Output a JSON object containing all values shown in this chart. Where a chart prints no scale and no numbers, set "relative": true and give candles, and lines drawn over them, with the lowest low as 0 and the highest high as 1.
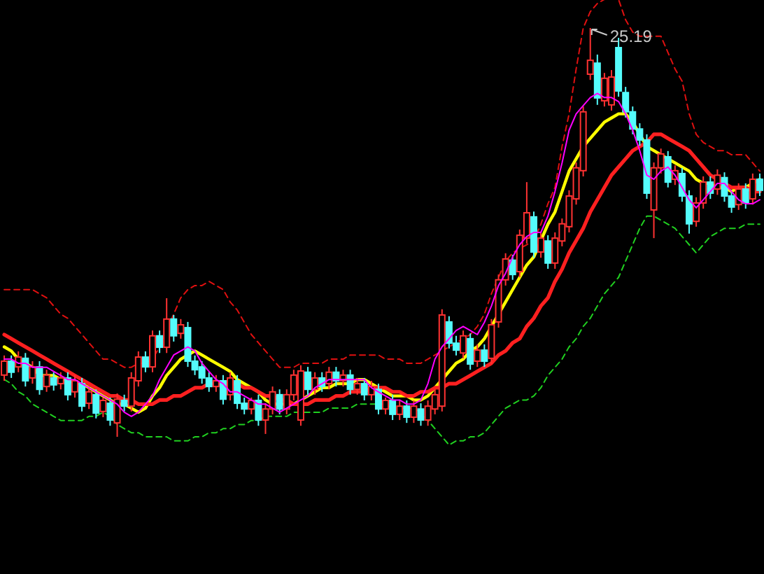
{
  "chart_data": {
    "type": "candlestick",
    "relative": true,
    "categories": [
      null,
      null,
      null,
      null,
      null,
      null,
      null,
      null,
      null,
      null,
      null,
      null,
      null,
      null,
      null,
      null,
      null,
      null,
      null,
      null,
      null,
      null,
      null,
      null,
      null,
      null,
      null,
      null,
      null,
      null,
      null,
      null,
      null,
      null,
      null,
      null,
      null,
      null,
      null,
      null,
      null,
      null,
      null,
      null,
      null,
      null,
      null,
      null,
      null,
      null,
      null,
      null,
      null,
      null,
      null,
      null,
      null,
      null,
      null,
      null,
      null,
      null,
      null,
      null,
      null,
      null,
      null,
      null,
      null,
      null,
      null,
      null,
      null,
      null,
      null,
      null,
      null,
      null,
      null,
      null,
      null,
      null,
      null,
      null,
      null,
      null,
      null,
      null,
      null,
      null,
      null,
      null,
      null,
      null,
      null,
      null,
      null,
      null,
      null,
      null,
      null,
      null,
      null,
      null,
      null,
      null,
      null,
      null
    ],
    "ohlc": [
      [
        0.151,
        0.199,
        0.137,
        0.185
      ],
      [
        0.185,
        0.199,
        0.144,
        0.158
      ],
      [
        0.171,
        0.209,
        0.158,
        0.195
      ],
      [
        0.192,
        0.205,
        0.123,
        0.137
      ],
      [
        0.144,
        0.185,
        0.13,
        0.171
      ],
      [
        0.171,
        0.185,
        0.103,
        0.116
      ],
      [
        0.123,
        0.164,
        0.11,
        0.151
      ],
      [
        0.144,
        0.158,
        0.113,
        0.127
      ],
      [
        0.13,
        0.158,
        0.116,
        0.144
      ],
      [
        0.144,
        0.158,
        0.089,
        0.103
      ],
      [
        0.11,
        0.151,
        0.096,
        0.137
      ],
      [
        0.13,
        0.144,
        0.062,
        0.075
      ],
      [
        0.082,
        0.123,
        0.068,
        0.11
      ],
      [
        0.103,
        0.116,
        0.045,
        0.058
      ],
      [
        0.062,
        0.096,
        0.048,
        0.089
      ],
      [
        0.082,
        0.096,
        0.027,
        0.041
      ],
      [
        0.034,
        0.106,
        0,
        0.092
      ],
      [
        0.089,
        0.103,
        0.062,
        0.075
      ],
      [
        0.075,
        0.158,
        0.062,
        0.144
      ],
      [
        0.137,
        0.209,
        0.123,
        0.195
      ],
      [
        0.195,
        0.209,
        0.158,
        0.171
      ],
      [
        0.171,
        0.26,
        0.158,
        0.247
      ],
      [
        0.247,
        0.26,
        0.205,
        0.219
      ],
      [
        0.219,
        0.339,
        0.205,
        0.288
      ],
      [
        0.288,
        0.298,
        0.233,
        0.247
      ],
      [
        0.253,
        0.288,
        0.24,
        0.274
      ],
      [
        0.267,
        0.281,
        0.171,
        0.185
      ],
      [
        0.185,
        0.199,
        0.151,
        0.164
      ],
      [
        0.171,
        0.185,
        0.13,
        0.144
      ],
      [
        0.144,
        0.158,
        0.11,
        0.123
      ],
      [
        0.123,
        0.151,
        0.11,
        0.137
      ],
      [
        0.137,
        0.151,
        0.079,
        0.092
      ],
      [
        0.103,
        0.158,
        0.089,
        0.144
      ],
      [
        0.137,
        0.151,
        0.068,
        0.082
      ],
      [
        0.082,
        0.096,
        0.055,
        0.068
      ],
      [
        0.068,
        0.096,
        0.055,
        0.089
      ],
      [
        0.089,
        0.103,
        0.027,
        0.041
      ],
      [
        0.041,
        0.082,
        0.007,
        0.068
      ],
      [
        0.068,
        0.123,
        0.055,
        0.11
      ],
      [
        0.103,
        0.116,
        0.055,
        0.068
      ],
      [
        0.068,
        0.116,
        0.055,
        0.103
      ],
      [
        0.103,
        0.164,
        0.089,
        0.151
      ],
      [
        0.041,
        0.175,
        0.027,
        0.161
      ],
      [
        0.158,
        0.171,
        0.103,
        0.116
      ],
      [
        0.116,
        0.158,
        0.103,
        0.144
      ],
      [
        0.144,
        0.158,
        0.11,
        0.123
      ],
      [
        0.13,
        0.171,
        0.116,
        0.158
      ],
      [
        0.158,
        0.171,
        0.123,
        0.137
      ],
      [
        0.137,
        0.164,
        0.123,
        0.151
      ],
      [
        0.151,
        0.164,
        0.103,
        0.116
      ],
      [
        0.116,
        0.144,
        0.103,
        0.13
      ],
      [
        0.13,
        0.144,
        0.089,
        0.103
      ],
      [
        0.103,
        0.137,
        0.089,
        0.123
      ],
      [
        0.116,
        0.13,
        0.055,
        0.068
      ],
      [
        0.068,
        0.096,
        0.055,
        0.089
      ],
      [
        0.089,
        0.103,
        0.041,
        0.055
      ],
      [
        0.055,
        0.089,
        0.041,
        0.075
      ],
      [
        0.075,
        0.089,
        0.034,
        0.048
      ],
      [
        0.048,
        0.089,
        0.034,
        0.075
      ],
      [
        0.068,
        0.082,
        0.027,
        0.041
      ],
      [
        0.041,
        0.089,
        0.027,
        0.075
      ],
      [
        0.068,
        0.116,
        0.055,
        0.103
      ],
      [
        0.075,
        0.312,
        0.062,
        0.298
      ],
      [
        0.281,
        0.295,
        0.216,
        0.229
      ],
      [
        0.229,
        0.247,
        0.199,
        0.212
      ],
      [
        0.205,
        0.26,
        0.192,
        0.247
      ],
      [
        0.24,
        0.253,
        0.164,
        0.178
      ],
      [
        0.185,
        0.226,
        0.171,
        0.212
      ],
      [
        0.212,
        0.226,
        0.171,
        0.185
      ],
      [
        0.192,
        0.288,
        0.178,
        0.274
      ],
      [
        0.281,
        0.397,
        0.267,
        0.384
      ],
      [
        0.384,
        0.449,
        0.37,
        0.435
      ],
      [
        0.432,
        0.445,
        0.384,
        0.397
      ],
      [
        0.404,
        0.507,
        0.39,
        0.493
      ],
      [
        0.486,
        0.623,
        0.473,
        0.548
      ],
      [
        0.538,
        0.551,
        0.438,
        0.452
      ],
      [
        0.452,
        0.5,
        0.438,
        0.486
      ],
      [
        0.479,
        0.493,
        0.411,
        0.425
      ],
      [
        0.425,
        0.5,
        0.411,
        0.486
      ],
      [
        0.479,
        0.534,
        0.466,
        0.521
      ],
      [
        0.514,
        0.603,
        0.5,
        0.589
      ],
      [
        0.582,
        0.671,
        0.568,
        0.658
      ],
      [
        0.651,
        0.808,
        0.637,
        0.795
      ],
      [
        0.887,
        1,
        0.873,
        0.921
      ],
      [
        0.914,
        0.935,
        0.812,
        0.829
      ],
      [
        0.822,
        0.89,
        0.808,
        0.877
      ],
      [
        0.812,
        0.897,
        0.798,
        0.88
      ],
      [
        0.952,
        0.976,
        0.832,
        0.846
      ],
      [
        0.842,
        0.856,
        0.781,
        0.795
      ],
      [
        0.795,
        0.808,
        0.74,
        0.753
      ],
      [
        0.753,
        0.767,
        0.712,
        0.726
      ],
      [
        0.726,
        0.74,
        0.582,
        0.596
      ],
      [
        0.555,
        0.671,
        0.486,
        0.658
      ],
      [
        0.658,
        0.705,
        0.644,
        0.692
      ],
      [
        0.685,
        0.699,
        0.61,
        0.623
      ],
      [
        0.63,
        0.664,
        0.616,
        0.651
      ],
      [
        0.644,
        0.658,
        0.575,
        0.589
      ],
      [
        0.589,
        0.603,
        0.497,
        0.521
      ],
      [
        0.527,
        0.586,
        0.514,
        0.572
      ],
      [
        0.572,
        0.637,
        0.558,
        0.623
      ],
      [
        0.623,
        0.637,
        0.582,
        0.596
      ],
      [
        0.606,
        0.654,
        0.592,
        0.64
      ],
      [
        0.634,
        0.647,
        0.575,
        0.589
      ],
      [
        0.589,
        0.603,
        0.548,
        0.562
      ],
      [
        0.568,
        0.62,
        0.555,
        0.606
      ],
      [
        0.606,
        0.62,
        0.558,
        0.572
      ],
      [
        0.582,
        0.644,
        0.568,
        0.63
      ],
      [
        0.63,
        0.644,
        0.589,
        0.603
      ]
    ],
    "series": [
      {
        "type": "line",
        "color": "#ffff00",
        "line_style": "solid",
        "values": [
          0.22,
          0.21,
          0.19,
          0.18,
          0.17,
          0.15,
          0.15,
          0.15,
          0.14,
          0.14,
          0.13,
          0.13,
          0.12,
          0.11,
          0.1,
          0.09,
          0.08,
          0.08,
          0.07,
          0.06,
          0.07,
          0.1,
          0.12,
          0.15,
          0.17,
          0.19,
          0.2,
          0.21,
          0.2,
          0.19,
          0.18,
          0.17,
          0.16,
          0.14,
          0.13,
          0.12,
          0.11,
          0.09,
          0.08,
          0.08,
          0.08,
          0.08,
          0.09,
          0.1,
          0.11,
          0.12,
          0.12,
          0.13,
          0.13,
          0.13,
          0.14,
          0.14,
          0.13,
          0.12,
          0.11,
          0.1,
          0.1,
          0.1,
          0.09,
          0.09,
          0.1,
          0.12,
          0.14,
          0.16,
          0.18,
          0.19,
          0.21,
          0.22,
          0.24,
          0.27,
          0.3,
          0.33,
          0.36,
          0.39,
          0.42,
          0.44,
          0.48,
          0.52,
          0.55,
          0.6,
          0.65,
          0.68,
          0.71,
          0.73,
          0.75,
          0.77,
          0.78,
          0.79,
          0.79,
          0.77,
          0.74,
          0.71,
          0.7,
          0.69,
          0.68,
          0.67,
          0.66,
          0.65,
          0.63,
          0.62,
          0.62,
          0.61,
          0.61,
          0.6,
          0.61,
          0.61,
          0.62,
          0.63
        ]
      },
      {
        "type": "line",
        "color": "#ff2020",
        "line_style": "solid",
        "values": [
          0.25,
          0.24,
          0.23,
          0.22,
          0.21,
          0.2,
          0.19,
          0.18,
          0.17,
          0.16,
          0.15,
          0.14,
          0.13,
          0.12,
          0.11,
          0.1,
          0.1,
          0.09,
          0.09,
          0.08,
          0.08,
          0.08,
          0.09,
          0.09,
          0.1,
          0.1,
          0.11,
          0.12,
          0.12,
          0.13,
          0.13,
          0.13,
          0.13,
          0.13,
          0.12,
          0.12,
          0.11,
          0.1,
          0.1,
          0.09,
          0.09,
          0.08,
          0.08,
          0.08,
          0.09,
          0.09,
          0.09,
          0.1,
          0.1,
          0.11,
          0.11,
          0.11,
          0.12,
          0.12,
          0.12,
          0.11,
          0.11,
          0.1,
          0.1,
          0.11,
          0.11,
          0.12,
          0.12,
          0.13,
          0.13,
          0.14,
          0.15,
          0.16,
          0.17,
          0.18,
          0.2,
          0.21,
          0.23,
          0.24,
          0.27,
          0.29,
          0.32,
          0.34,
          0.38,
          0.41,
          0.45,
          0.48,
          0.51,
          0.55,
          0.58,
          0.61,
          0.64,
          0.66,
          0.68,
          0.7,
          0.71,
          0.72,
          0.74,
          0.74,
          0.73,
          0.72,
          0.71,
          0.7,
          0.68,
          0.66,
          0.64,
          0.63,
          0.62,
          0.61,
          0.61,
          0.61,
          0.6,
          0.6
        ]
      },
      {
        "type": "line",
        "color": "#ff00ff",
        "line_style": "solid",
        "values": [
          0.19,
          0.19,
          0.18,
          0.18,
          0.17,
          0.17,
          0.17,
          0.16,
          0.15,
          0.14,
          0.14,
          0.13,
          0.12,
          0.11,
          0.1,
          0.09,
          0.08,
          0.06,
          0.05,
          0.06,
          0.08,
          0.1,
          0.14,
          0.17,
          0.2,
          0.21,
          0.22,
          0.21,
          0.18,
          0.16,
          0.14,
          0.13,
          0.11,
          0.11,
          0.1,
          0.09,
          0.08,
          0.08,
          0.07,
          0.06,
          0.07,
          0.08,
          0.09,
          0.1,
          0.12,
          0.13,
          0.14,
          0.14,
          0.14,
          0.14,
          0.14,
          0.14,
          0.12,
          0.11,
          0.1,
          0.09,
          0.09,
          0.08,
          0.08,
          0.09,
          0.13,
          0.19,
          0.22,
          0.24,
          0.26,
          0.27,
          0.26,
          0.25,
          0.28,
          0.32,
          0.37,
          0.4,
          0.44,
          0.47,
          0.49,
          0.5,
          0.5,
          0.54,
          0.6,
          0.67,
          0.75,
          0.79,
          0.81,
          0.83,
          0.84,
          0.83,
          0.83,
          0.82,
          0.79,
          0.75,
          0.7,
          0.64,
          0.63,
          0.65,
          0.66,
          0.64,
          0.61,
          0.58,
          0.56,
          0.58,
          0.6,
          0.62,
          0.62,
          0.6,
          0.58,
          0.57,
          0.57,
          0.58
        ]
      },
      {
        "type": "line",
        "color": "#e01010",
        "line_style": "dashed",
        "values": [
          0.36,
          0.36,
          0.36,
          0.36,
          0.36,
          0.35,
          0.34,
          0.32,
          0.3,
          0.29,
          0.27,
          0.25,
          0.23,
          0.21,
          0.19,
          0.19,
          0.18,
          0.17,
          0.17,
          0.18,
          0.18,
          0.19,
          0.22,
          0.26,
          0.3,
          0.34,
          0.36,
          0.37,
          0.37,
          0.38,
          0.37,
          0.36,
          0.33,
          0.31,
          0.28,
          0.25,
          0.23,
          0.21,
          0.19,
          0.17,
          0.17,
          0.17,
          0.18,
          0.18,
          0.18,
          0.18,
          0.19,
          0.19,
          0.19,
          0.2,
          0.2,
          0.2,
          0.2,
          0.2,
          0.19,
          0.19,
          0.19,
          0.18,
          0.18,
          0.18,
          0.19,
          0.2,
          0.21,
          0.22,
          0.23,
          0.24,
          0.25,
          0.27,
          0.3,
          0.35,
          0.39,
          0.43,
          0.45,
          0.46,
          0.47,
          0.48,
          0.52,
          0.57,
          0.61,
          0.71,
          0.79,
          0.9,
          1.0,
          1.04,
          1.06,
          1.07,
          1.07,
          1.07,
          1.02,
          0.99,
          0.98,
          0.98,
          0.98,
          0.98,
          0.94,
          0.9,
          0.87,
          0.79,
          0.74,
          0.72,
          0.71,
          0.7,
          0.7,
          0.69,
          0.69,
          0.69,
          0.67,
          0.65
        ]
      },
      {
        "type": "line",
        "color": "#20d020",
        "line_style": "dashed",
        "values": [
          0.14,
          0.13,
          0.11,
          0.1,
          0.08,
          0.07,
          0.06,
          0.05,
          0.04,
          0.04,
          0.04,
          0.04,
          0.05,
          0.05,
          0.06,
          0.05,
          0.03,
          0.02,
          0.01,
          0.01,
          0.0,
          0.0,
          0.0,
          0.0,
          -0.01,
          -0.01,
          -0.01,
          0.0,
          0.0,
          0.01,
          0.01,
          0.02,
          0.02,
          0.03,
          0.03,
          0.04,
          0.04,
          0.05,
          0.05,
          0.05,
          0.05,
          0.06,
          0.06,
          0.06,
          0.06,
          0.06,
          0.07,
          0.07,
          0.07,
          0.07,
          0.08,
          0.08,
          0.08,
          0.08,
          0.08,
          0.07,
          0.07,
          0.07,
          0.07,
          0.06,
          0.04,
          0.02,
          0.0,
          -0.02,
          -0.01,
          -0.01,
          0.0,
          0.0,
          0.01,
          0.03,
          0.05,
          0.07,
          0.08,
          0.09,
          0.09,
          0.1,
          0.12,
          0.15,
          0.17,
          0.19,
          0.22,
          0.24,
          0.27,
          0.29,
          0.32,
          0.35,
          0.37,
          0.39,
          0.43,
          0.47,
          0.51,
          0.54,
          0.54,
          0.53,
          0.52,
          0.51,
          0.49,
          0.47,
          0.45,
          0.47,
          0.49,
          0.5,
          0.51,
          0.51,
          0.51,
          0.52,
          0.52,
          0.52
        ]
      }
    ],
    "annotations": [
      "25.19"
    ]
  }
}
